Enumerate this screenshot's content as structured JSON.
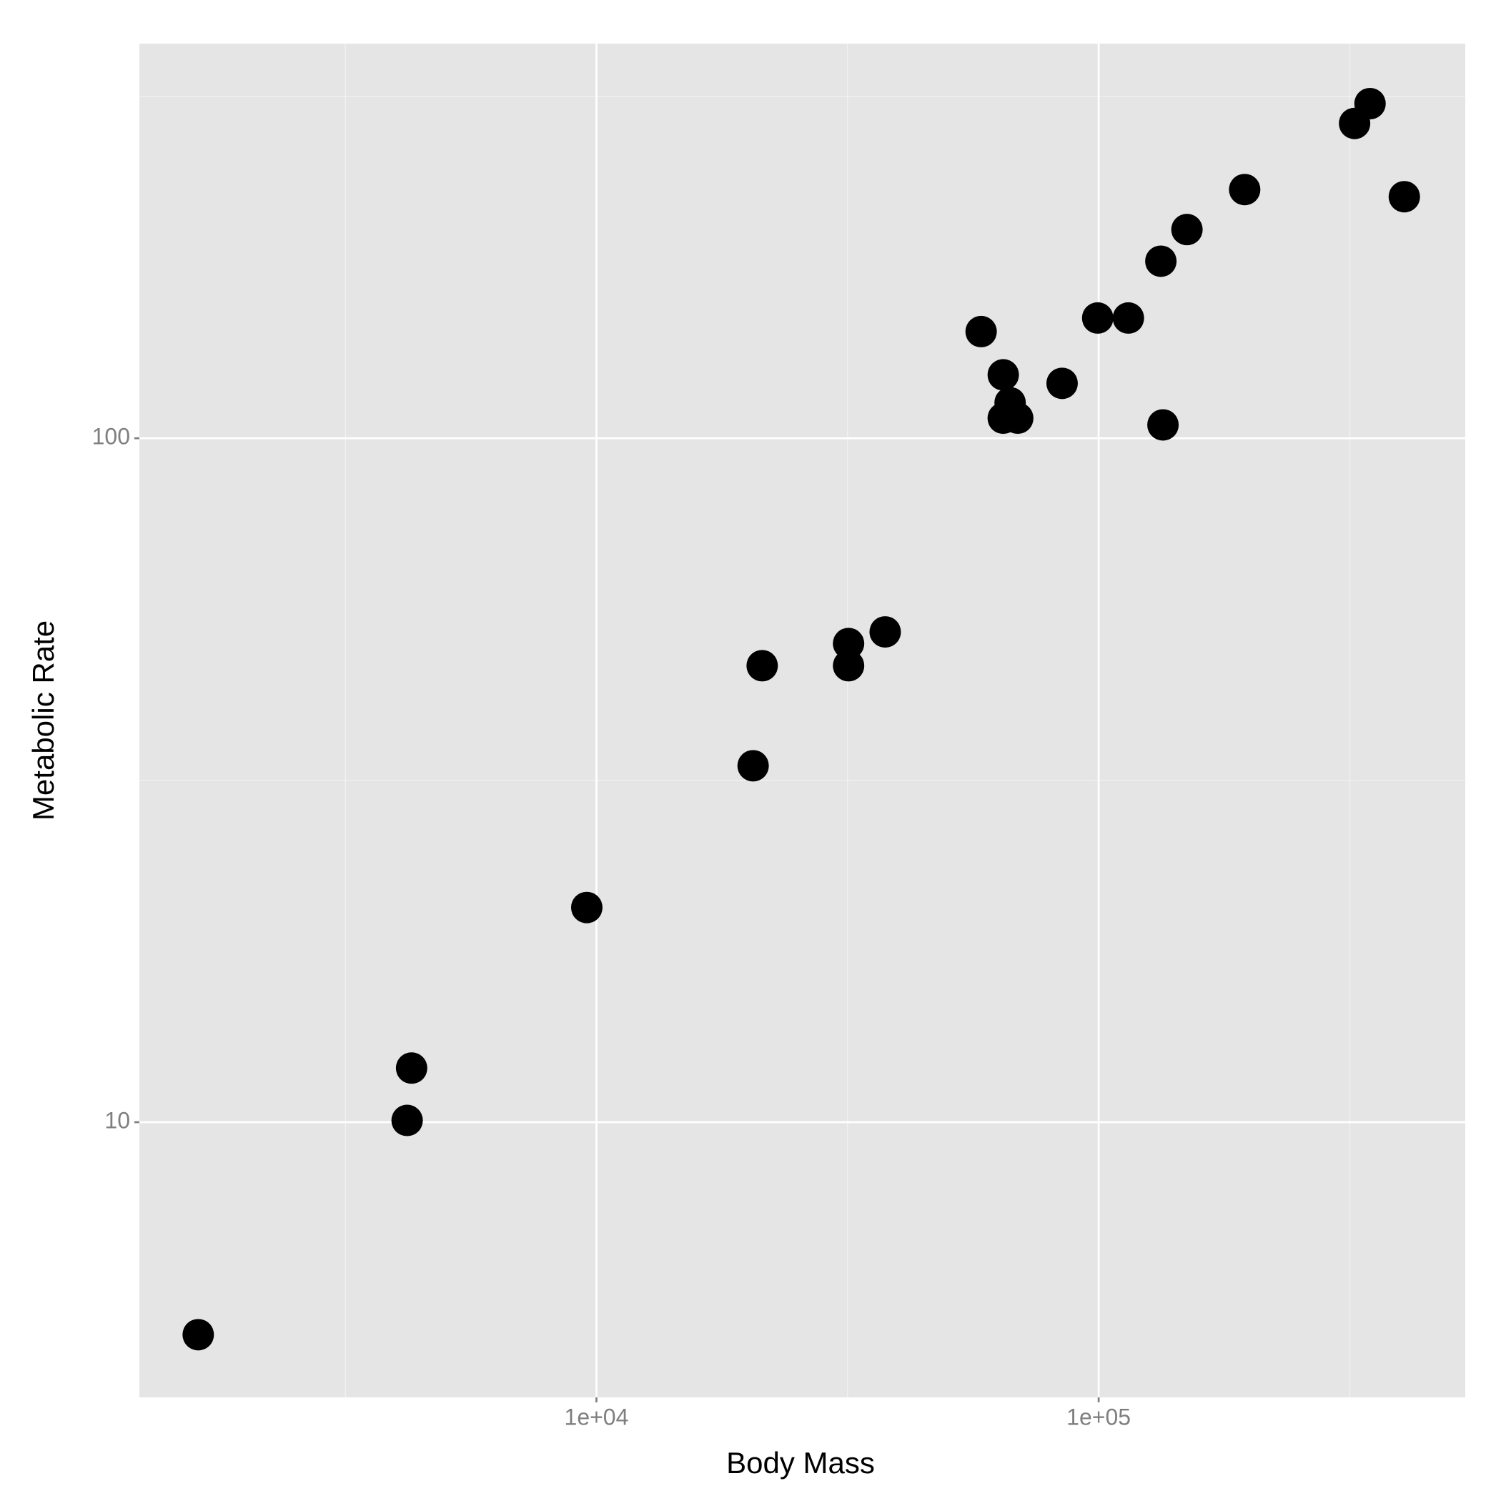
{
  "chart_data": {
    "type": "scatter",
    "x_label": "Body Mass",
    "y_label": "Metabolic Rate",
    "x_log": true,
    "y_log": true,
    "color": "#000000",
    "grid": true,
    "xlim": [
      1230,
      537000
    ],
    "ylim": [
      3.96,
      377.6
    ],
    "xticks": [
      {
        "value": 10000,
        "label": "1e+04"
      },
      {
        "value": 100000,
        "label": "1e+05"
      }
    ],
    "yticks": [
      10,
      100
    ],
    "x_minor_grid": [
      3162.28,
      31622.8,
      316228
    ],
    "y_minor_grid": [
      31.62,
      316.2
    ],
    "x": [
      1611,
      4285,
      4198,
      9567,
      20510,
      21380,
      31770,
      31770,
      37580,
      58340,
      64570,
      66630,
      64570,
      69000,
      84570,
      99560,
      114600,
      134300,
      133000,
      149900,
      195300,
      323300,
      347000,
      406100
    ],
    "y": [
      4.89,
      12.0,
      10.06,
      20.6,
      33.2,
      46.5,
      46.5,
      50.1,
      52.1,
      143.2,
      123.8,
      112.7,
      107.0,
      107.0,
      120.3,
      149.9,
      149.9,
      104.6,
      181.5,
      201.9,
      231.0,
      288.6,
      308.5,
      225.5
    ]
  }
}
